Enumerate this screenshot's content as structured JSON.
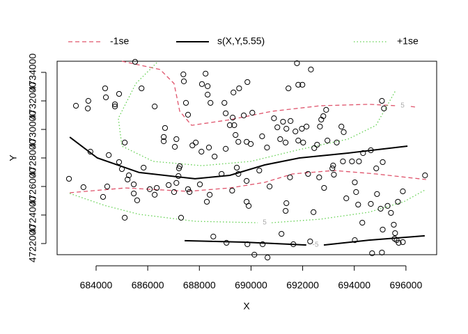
{
  "chart_data": {
    "type": "contour",
    "xlabel": "X",
    "ylabel": "Y",
    "xlim": [
      682490,
      697190
    ],
    "ylim": [
      4721220,
      4734780
    ],
    "xticks": [
      684000,
      686000,
      688000,
      690000,
      692000,
      694000,
      696000
    ],
    "yticks": [
      4722000,
      4724000,
      4726000,
      4728000,
      4730000,
      4732000,
      4734000
    ],
    "legend": "top",
    "series": [
      {
        "name": "-1se",
        "color": "#DF536B",
        "style": "dashed",
        "lines": [
          {
            "x": [
              685000,
              686480,
              687020,
              687240,
              687700,
              689180,
              690800,
              692680,
              694570,
              695650,
              null,
              696190,
              696410
            ],
            "y": [
              4734780,
              4734200,
              4733220,
              4731270,
              4730290,
              4730680,
              4731270,
              4731660,
              4731760,
              4731660,
              null,
              4731610,
              4731560
            ]
          },
          {
            "x": [
              682980,
              685130,
              687560,
              689180,
              690530,
              691600,
              693220,
              694840,
              696780
            ],
            "y": [
              4725560,
              4725900,
              4725660,
              4725900,
              4726290,
              4726880,
              4727120,
              4726880,
              4726490
            ]
          }
        ]
      },
      {
        "name": "s(X,Y,5.55)",
        "color": "#000000",
        "style": "solid",
        "lines": [
          {
            "x": [
              682980,
              684050,
              685670,
              687830,
              689180,
              690530,
              691880,
              693760,
              696060
            ],
            "y": [
              4729460,
              4728000,
              4726980,
              4726540,
              4726780,
              4727510,
              4728000,
              4728340,
              4728830
            ]
          },
          {
            "x": [
              687430,
              689720,
              692140,
              null,
              692820,
              694570,
              696730
            ],
            "y": [
              4722200,
              4722100,
              4721900,
              null,
              4721900,
              4722240,
              4722540
            ]
          }
        ]
      },
      {
        "name": "+1se",
        "color": "#61D04F",
        "style": "dotted",
        "lines": [
          {
            "x": [
              686350,
              685540,
              684860,
              685000,
              686210,
              688100,
              689990,
              691880,
              693760,
              694840,
              695600
            ],
            "y": [
              4734680,
              4733220,
              4730780,
              4728830,
              4727760,
              4727460,
              4727760,
              4728590,
              4729320,
              4730290,
              4732730
            ]
          },
          {
            "x": [
              682980,
              684320,
              685670,
              687830,
              690260,
              null,
              690800,
              692680,
              694570,
              695920,
              696780
            ],
            "y": [
              4725510,
              4724680,
              4724050,
              4723560,
              4723460,
              null,
              4723460,
              4723710,
              4724200,
              4724930,
              4725800
            ]
          }
        ]
      }
    ],
    "contour_labels": [
      {
        "value": -5,
        "x": 692500,
        "y": 4721900
      },
      {
        "value": 5,
        "x": 695870,
        "y": 4731660
      },
      {
        "value": 5,
        "x": 690530,
        "y": 4723460
      }
    ],
    "points": {
      "x": [
        683220,
        683700,
        683680,
        684350,
        684380,
        684730,
        684730,
        684890,
        685510,
        685760,
        686270,
        687380,
        687400,
        687480,
        687560,
        688100,
        688240,
        688320,
        688320,
        688430,
        688970,
        689020,
        689320,
        689540,
        689290,
        689860,
        689180,
        689720,
        690050,
        691450,
        691780,
        691830,
        691990,
        692320,
        692910,
        692800,
        692720,
        692670,
        693500,
        693590,
        695150,
        695070,
        683780,
        684490,
        685110,
        685000,
        685270,
        685840,
        686620,
        686620,
        686670,
        687110,
        687050,
        687730,
        687860,
        688080,
        688370,
        688590,
        689020,
        689510,
        689350,
        689400,
        689830,
        689990,
        690430,
        690620,
        690890,
        691020,
        691130,
        691240,
        691370,
        691530,
        691340,
        691720,
        691830,
        691970,
        692150,
        692020,
        692450,
        692560,
        692960,
        693320,
        693180,
        693560,
        693910,
        694180,
        694340,
        694640,
        694850,
        695100,
        682950,
        683510,
        684270,
        684430,
        684890,
        685220,
        685460,
        685460,
        685590,
        686080,
        686350,
        686810,
        687020,
        687110,
        687190,
        687210,
        687240,
        687290,
        687560,
        687620,
        688020,
        688290,
        688400,
        688860,
        689270,
        689450,
        689510,
        689830,
        689830,
        689910,
        690320,
        690720,
        691370,
        691340,
        691510,
        692210,
        692420,
        692640,
        692830,
        693150,
        693210,
        693690,
        694070,
        694020,
        694150,
        694310,
        694640,
        694880,
        695020,
        695100,
        695290,
        695420,
        695530,
        695580,
        695640,
        695690,
        695880,
        696740,
        685110,
        686270,
        688540,
        689050,
        689860,
        690130,
        690450,
        690640,
        691180,
        691640,
        692290,
        694020,
        694690,
        695070,
        695560,
        695720,
        695880
      ],
      "y": [
        4731660,
        4732000,
        4731470,
        4732880,
        4732250,
        4731760,
        4731610,
        4732490,
        4734740,
        4732880,
        4731610,
        4733860,
        4733370,
        4731860,
        4731030,
        4733180,
        4733910,
        4733030,
        4732440,
        4731860,
        4731860,
        4731130,
        4732590,
        4732880,
        4730830,
        4733320,
        4730300,
        4730980,
        4731170,
        4732880,
        4734640,
        4733130,
        4733130,
        4734200,
        4731370,
        4730930,
        4730690,
        4730200,
        4730200,
        4729810,
        4731470,
        4732000,
        4728440,
        4728200,
        4729080,
        4727220,
        4726780,
        4727320,
        4729170,
        4729470,
        4730100,
        4729320,
        4728780,
        4728880,
        4729080,
        4728440,
        4728730,
        4728100,
        4728640,
        4729130,
        4730300,
        4729610,
        4729130,
        4728980,
        4729520,
        4728730,
        4730780,
        4730150,
        4729320,
        4730540,
        4730050,
        4730590,
        4729080,
        4729860,
        4729220,
        4730050,
        4730200,
        4729080,
        4728690,
        4728930,
        4729220,
        4729080,
        4727470,
        4727760,
        4727760,
        4727760,
        4728340,
        4728540,
        4727270,
        4727710,
        4726540,
        4725950,
        4725270,
        4726000,
        4727710,
        4726490,
        4726150,
        4725510,
        4725030,
        4725810,
        4725900,
        4726100,
        4725610,
        4726250,
        4726730,
        4727270,
        4727420,
        4723810,
        4725810,
        4725610,
        4726150,
        4724930,
        4725420,
        4726880,
        4725710,
        4727320,
        4726880,
        4726390,
        4724930,
        4724640,
        4727120,
        4726000,
        4724830,
        4724290,
        4726640,
        4726880,
        4724200,
        4726640,
        4725900,
        4727270,
        4726830,
        4725170,
        4725610,
        4726290,
        4724730,
        4723460,
        4724780,
        4725470,
        4724440,
        4722980,
        4724640,
        4724150,
        4723320,
        4722730,
        4722240,
        4724930,
        4725660,
        4726780,
        4723810,
        4725420,
        4722490,
        4722050,
        4721950,
        4721220,
        4721950,
        4721020,
        4722680,
        4721950,
        4722150,
        4722240,
        4721320,
        4721370,
        4722340,
        4722050,
        4722100
      ]
    }
  }
}
